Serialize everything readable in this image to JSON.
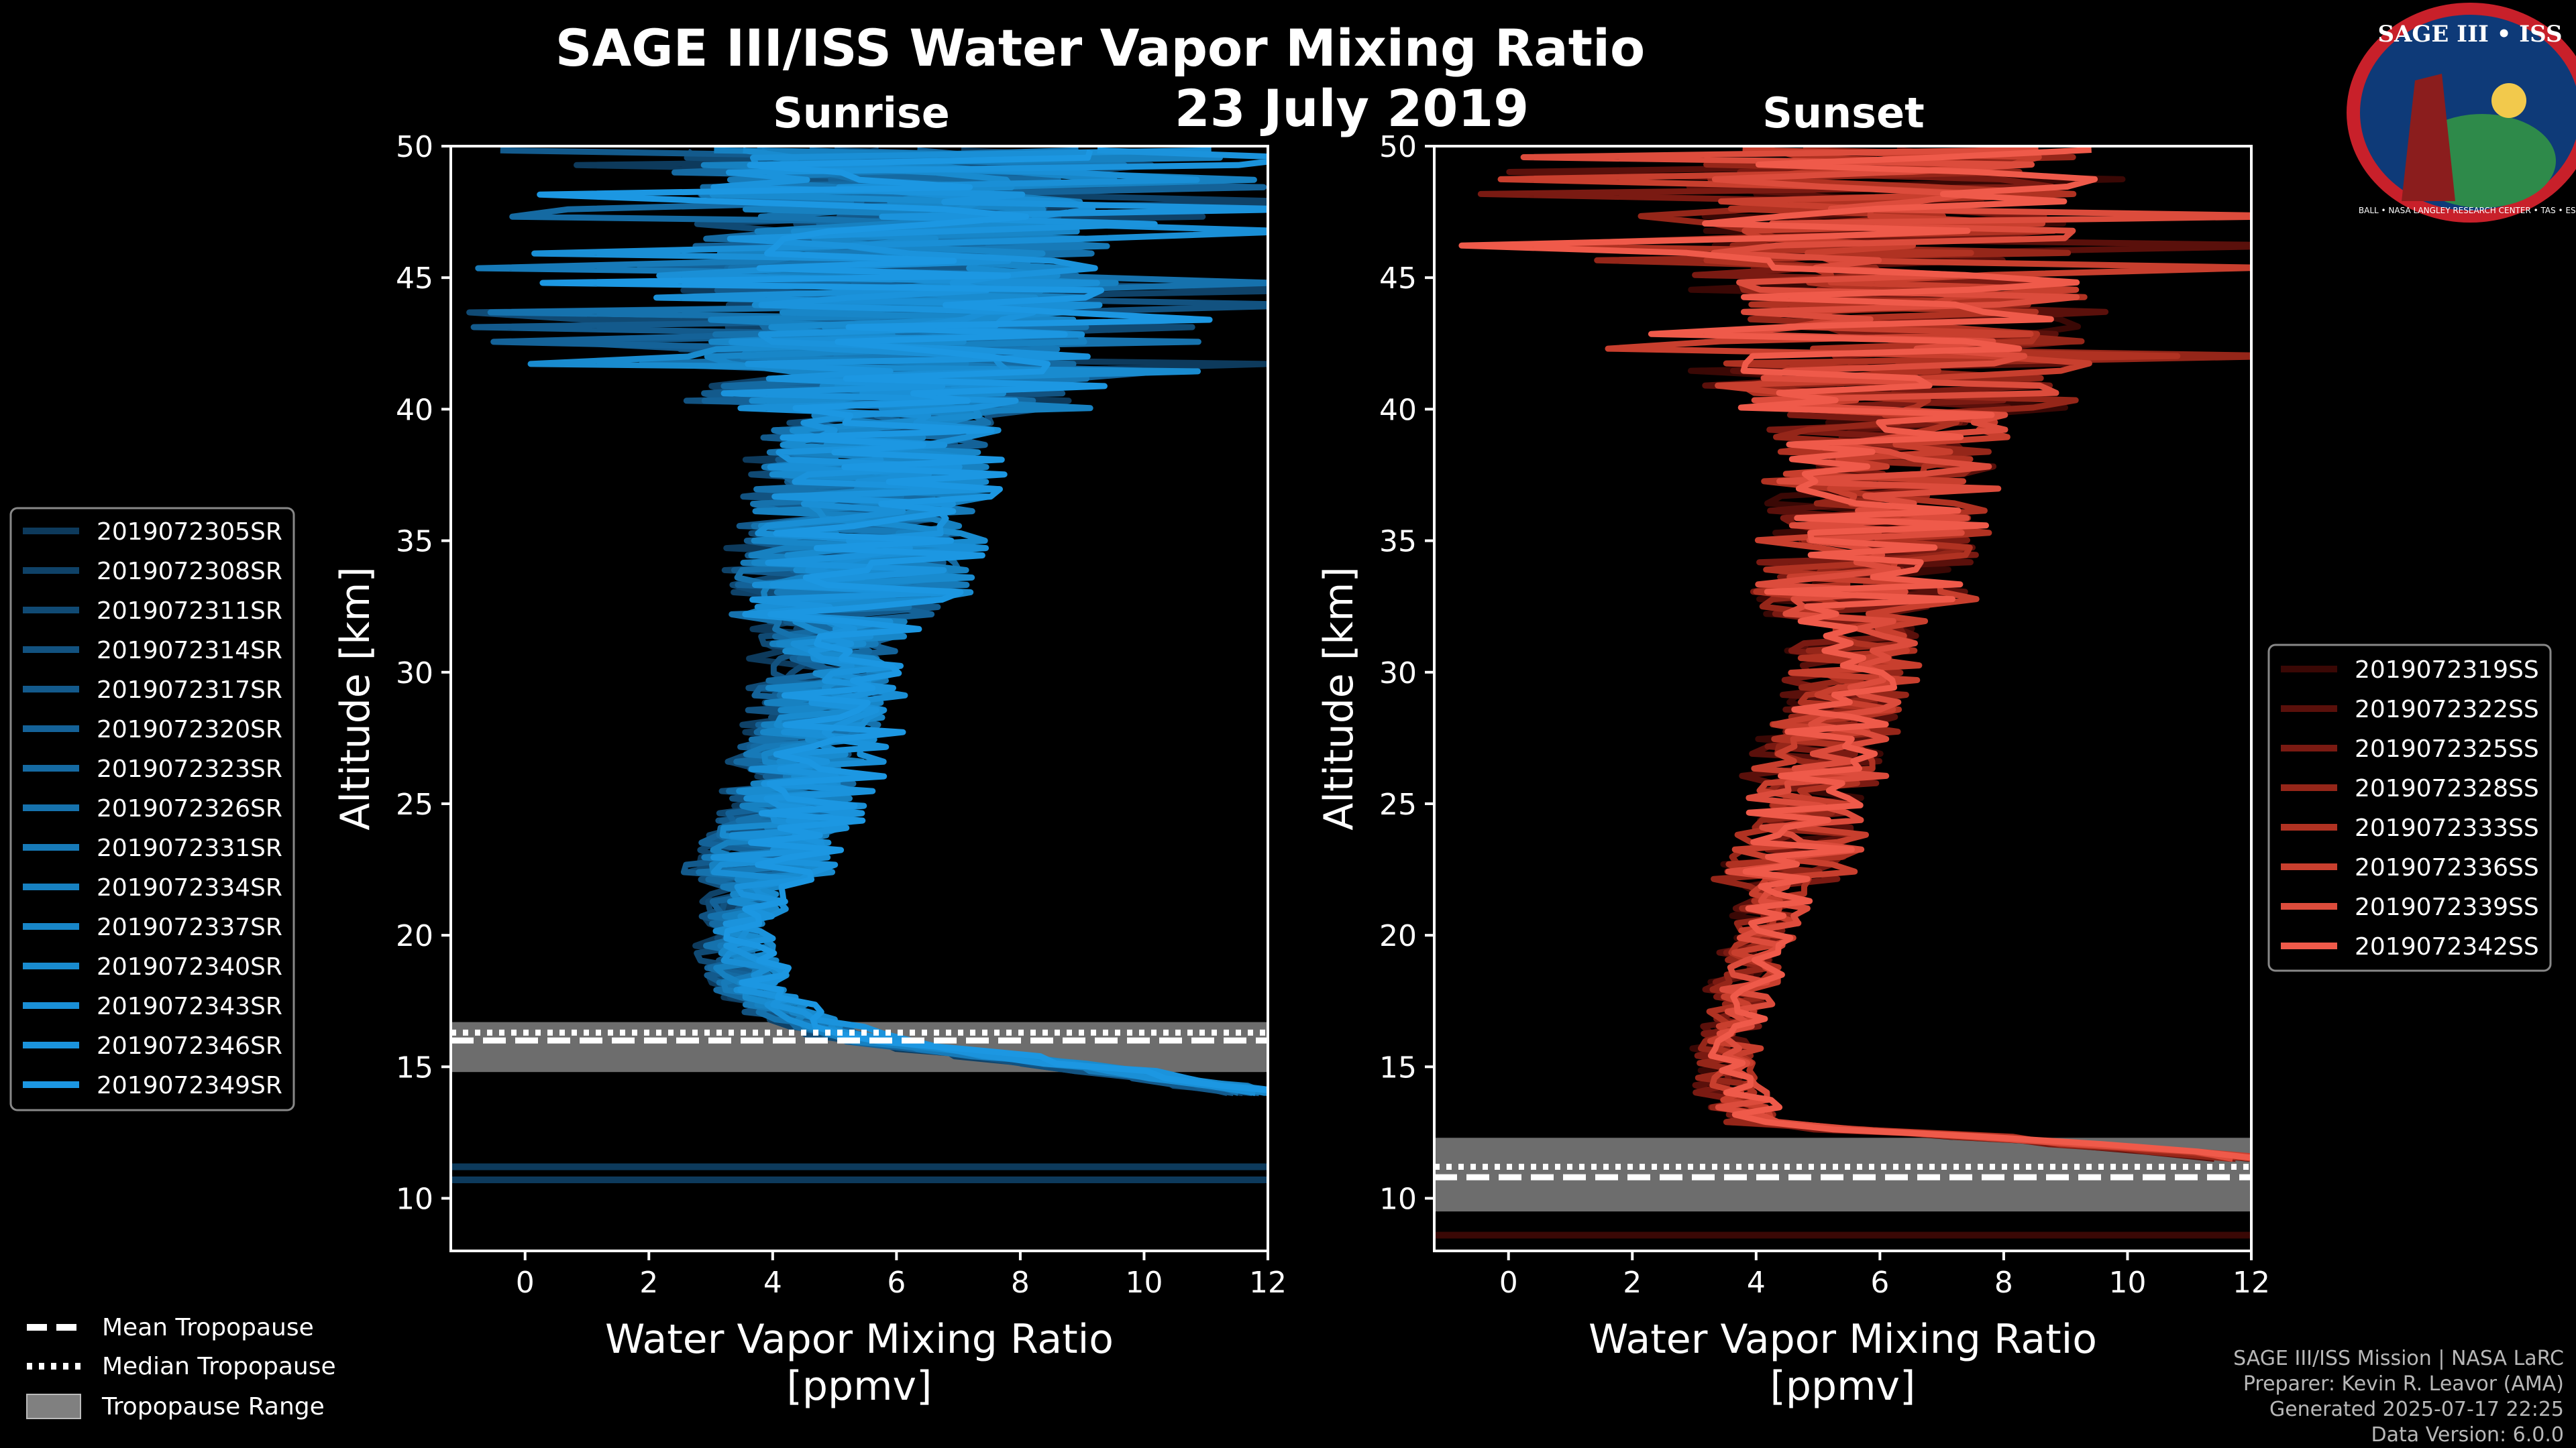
{
  "title": "SAGE III/ISS Water Vapor Mixing Ratio",
  "date": "23 July 2019",
  "logo": {
    "text": "SAGE III • ISS",
    "ring": "BALL • NASA LANGLEY RESEARCH CENTER • TAS • ESA"
  },
  "credits": [
    "SAGE III/ISS Mission | NASA LaRC",
    "Preparer: Kevin R. Leavor (AMA)",
    "Generated 2025-07-17 22:25",
    "Data Version: 6.0.0"
  ],
  "colors": {
    "sunrise": "#1a8fd6",
    "sunset": "#ef5a4a",
    "tropo_fill": "#808080"
  },
  "tropo_legend": {
    "mean": "Mean Tropopause",
    "median": "Median Tropopause",
    "range": "Tropopause Range"
  },
  "chart_data": [
    {
      "type": "line",
      "panel": "Sunrise",
      "title": "Sunrise",
      "xlabel": "Water Vapor Mixing Ratio",
      "xlabel2": "[ppmv]",
      "ylabel": "Altitude [km]",
      "xlim": [
        -1.2,
        12
      ],
      "ylim": [
        8,
        50
      ],
      "xticks": [
        0,
        2,
        4,
        6,
        8,
        10,
        12
      ],
      "yticks": [
        10,
        15,
        20,
        25,
        30,
        35,
        40,
        45,
        50
      ],
      "series": [
        {
          "name": "2019072305SR",
          "color": "#0d3a5c"
        },
        {
          "name": "2019072308SR",
          "color": "#0f4268"
        },
        {
          "name": "2019072311SR",
          "color": "#104a74"
        },
        {
          "name": "2019072314SR",
          "color": "#125280"
        },
        {
          "name": "2019072317SR",
          "color": "#135a8c"
        },
        {
          "name": "2019072320SR",
          "color": "#146298"
        },
        {
          "name": "2019072323SR",
          "color": "#156aa2"
        },
        {
          "name": "2019072326SR",
          "color": "#1672ad"
        },
        {
          "name": "2019072331SR",
          "color": "#177ab8"
        },
        {
          "name": "2019072334SR",
          "color": "#1781c1"
        },
        {
          "name": "2019072337SR",
          "color": "#1886c8"
        },
        {
          "name": "2019072340SR",
          "color": "#198bcf"
        },
        {
          "name": "2019072343SR",
          "color": "#1a8fd6"
        },
        {
          "name": "2019072346SR",
          "color": "#1b93dc"
        },
        {
          "name": "2019072349SR",
          "color": "#1c97e2"
        }
      ],
      "profile_mean": [
        {
          "alt": 14.0,
          "v": 12.0
        },
        {
          "alt": 15.0,
          "v": 9.0
        },
        {
          "alt": 16.0,
          "v": 5.5
        },
        {
          "alt": 17.0,
          "v": 4.2
        },
        {
          "alt": 18.0,
          "v": 3.6
        },
        {
          "alt": 20.0,
          "v": 3.4
        },
        {
          "alt": 22.0,
          "v": 3.7
        },
        {
          "alt": 25.0,
          "v": 4.3
        },
        {
          "alt": 28.0,
          "v": 4.8
        },
        {
          "alt": 31.0,
          "v": 5.0
        },
        {
          "alt": 34.0,
          "v": 5.3
        },
        {
          "alt": 37.0,
          "v": 5.6
        },
        {
          "alt": 40.0,
          "v": 5.9
        },
        {
          "alt": 43.0,
          "v": 6.0
        },
        {
          "alt": 46.0,
          "v": 6.0
        },
        {
          "alt": 50.0,
          "v": 6.0
        }
      ],
      "tropopause": {
        "mean": 16.0,
        "median": 16.3,
        "range": [
          14.8,
          16.7
        ]
      },
      "extra_lines_km": [
        10.7,
        11.2
      ],
      "legend_position": "left"
    },
    {
      "type": "line",
      "panel": "Sunset",
      "title": "Sunset",
      "xlabel": "Water Vapor Mixing Ratio",
      "xlabel2": "[ppmv]",
      "ylabel": "Altitude [km]",
      "xlim": [
        -1.2,
        12
      ],
      "ylim": [
        8,
        50
      ],
      "xticks": [
        0,
        2,
        4,
        6,
        8,
        10,
        12
      ],
      "yticks": [
        10,
        15,
        20,
        25,
        30,
        35,
        40,
        45,
        50
      ],
      "series": [
        {
          "name": "2019072319SS",
          "color": "#3a0805"
        },
        {
          "name": "2019072322SS",
          "color": "#5a100b"
        },
        {
          "name": "2019072325SS",
          "color": "#7a1a12"
        },
        {
          "name": "2019072328SS",
          "color": "#952619"
        },
        {
          "name": "2019072333SS",
          "color": "#b03222"
        },
        {
          "name": "2019072336SS",
          "color": "#c83f2e"
        },
        {
          "name": "2019072339SS",
          "color": "#dc4c3c"
        },
        {
          "name": "2019072342SS",
          "color": "#ef5a4a"
        }
      ],
      "profile_mean": [
        {
          "alt": 11.5,
          "v": 12.0
        },
        {
          "alt": 12.3,
          "v": 8.0
        },
        {
          "alt": 12.8,
          "v": 4.0
        },
        {
          "alt": 14.0,
          "v": 3.6
        },
        {
          "alt": 16.0,
          "v": 3.6
        },
        {
          "alt": 18.0,
          "v": 3.8
        },
        {
          "alt": 20.0,
          "v": 4.1
        },
        {
          "alt": 22.0,
          "v": 4.4
        },
        {
          "alt": 25.0,
          "v": 4.8
        },
        {
          "alt": 28.0,
          "v": 5.3
        },
        {
          "alt": 31.0,
          "v": 5.6
        },
        {
          "alt": 34.0,
          "v": 5.8
        },
        {
          "alt": 37.0,
          "v": 6.0
        },
        {
          "alt": 40.0,
          "v": 6.2
        },
        {
          "alt": 43.0,
          "v": 6.2
        },
        {
          "alt": 46.0,
          "v": 6.2
        },
        {
          "alt": 50.0,
          "v": 6.2
        }
      ],
      "tropopause": {
        "mean": 10.8,
        "median": 11.2,
        "range": [
          9.5,
          12.3
        ]
      },
      "extra_lines_km": [
        8.6
      ],
      "legend_position": "right"
    }
  ]
}
